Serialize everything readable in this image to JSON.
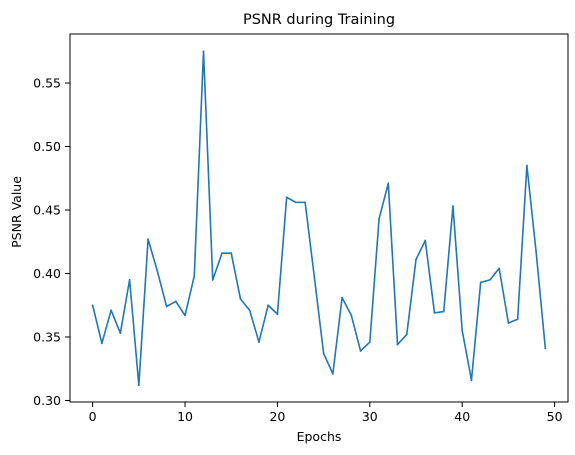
{
  "chart_data": {
    "type": "line",
    "title": "PSNR during Training",
    "xlabel": "Epochs",
    "ylabel": "PSNR Value",
    "xlim": [
      -2.45,
      51.45
    ],
    "ylim": [
      0.2988,
      0.5886
    ],
    "xticks": [
      0,
      10,
      20,
      30,
      40,
      50
    ],
    "xtick_labels": [
      "0",
      "10",
      "20",
      "30",
      "40",
      "50"
    ],
    "yticks": [
      0.3,
      0.35,
      0.4,
      0.45,
      0.5,
      0.55
    ],
    "ytick_labels": [
      "0.30",
      "0.35",
      "0.40",
      "0.45",
      "0.50",
      "0.55"
    ],
    "grid": false,
    "color": "#1f77b4",
    "series": [
      {
        "x": [
          0,
          1,
          2,
          3,
          4,
          5,
          6,
          7,
          8,
          9,
          10,
          11,
          12,
          13,
          14,
          15,
          16,
          17,
          18,
          19,
          20,
          21,
          22,
          23,
          24,
          25,
          26,
          27,
          28,
          29,
          30,
          31,
          32,
          33,
          34,
          35,
          36,
          37,
          38,
          39,
          40,
          41,
          42,
          43,
          44,
          45,
          46,
          47,
          48,
          49
        ],
        "values": [
          0.375,
          0.345,
          0.371,
          0.353,
          0.395,
          0.312,
          0.427,
          0.402,
          0.374,
          0.378,
          0.367,
          0.398,
          0.575,
          0.395,
          0.416,
          0.416,
          0.38,
          0.371,
          0.346,
          0.375,
          0.368,
          0.46,
          0.456,
          0.456,
          0.397,
          0.337,
          0.321,
          0.381,
          0.367,
          0.339,
          0.346,
          0.443,
          0.471,
          0.344,
          0.352,
          0.411,
          0.426,
          0.369,
          0.37,
          0.453,
          0.355,
          0.316,
          0.393,
          0.395,
          0.404,
          0.361,
          0.364,
          0.485,
          0.417,
          0.341
        ]
      }
    ]
  }
}
